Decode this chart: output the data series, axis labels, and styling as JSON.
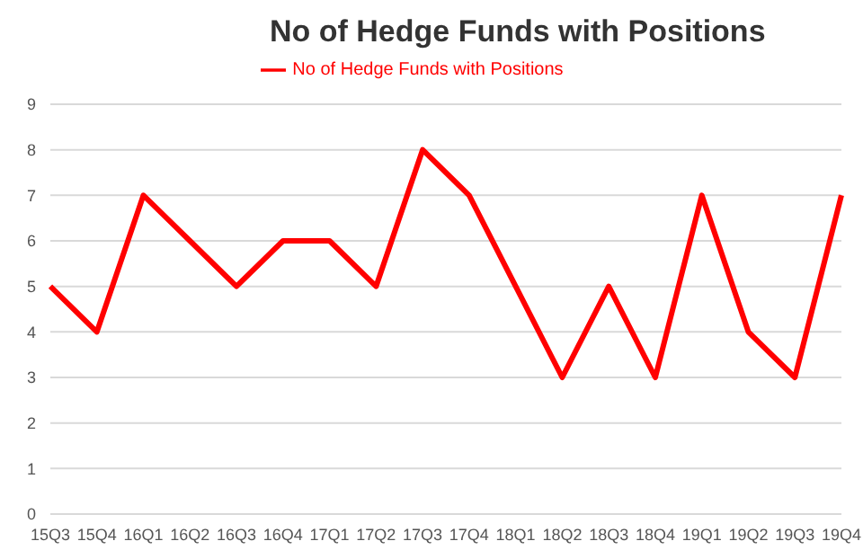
{
  "chart_data": {
    "type": "line",
    "title": "No of Hedge Funds with Positions",
    "categories": [
      "15Q3",
      "15Q4",
      "16Q1",
      "16Q2",
      "16Q3",
      "16Q4",
      "17Q1",
      "17Q2",
      "17Q3",
      "17Q4",
      "18Q1",
      "18Q2",
      "18Q3",
      "18Q4",
      "19Q1",
      "19Q2",
      "19Q3",
      "19Q4"
    ],
    "series": [
      {
        "name": "No of Hedge Funds with Positions",
        "color": "#ff0000",
        "values": [
          5,
          4,
          7,
          6,
          5,
          6,
          6,
          5,
          8,
          7,
          5,
          3,
          5,
          3,
          7,
          4,
          3,
          7
        ]
      }
    ],
    "ylim": [
      0,
      9
    ],
    "yticks": [
      0,
      1,
      2,
      3,
      4,
      5,
      6,
      7,
      8,
      9
    ],
    "grid": "y",
    "legend": "top",
    "marker": "none",
    "line_style": "solid"
  }
}
